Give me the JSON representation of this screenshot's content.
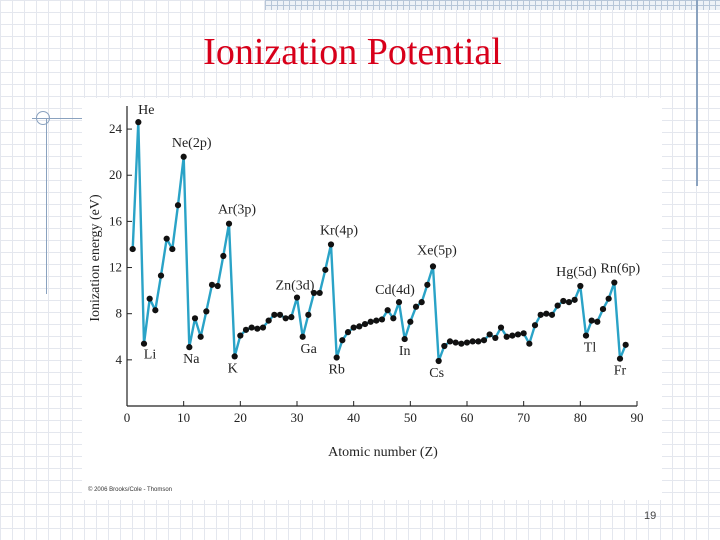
{
  "slide": {
    "title": "Ionization Potential",
    "page_number": "19",
    "copyright": "© 2006 Brooks/Cole - Thomson"
  },
  "colors": {
    "title": "#d8001a",
    "line": "#2aa3c7",
    "point": "#111111"
  },
  "chart_data": {
    "type": "line",
    "title": "",
    "xlabel": "Atomic number (Z)",
    "ylabel": "Ionization energy (eV)",
    "xlim": [
      0,
      90
    ],
    "ylim": [
      0,
      26
    ],
    "xticks": [
      0,
      10,
      20,
      30,
      40,
      50,
      60,
      70,
      80,
      90
    ],
    "yticks": [
      4,
      8,
      12,
      16,
      20,
      24
    ],
    "grid": false,
    "series": [
      {
        "x": [
          1,
          2,
          3,
          4,
          5,
          6,
          7,
          8,
          9,
          10,
          11,
          12,
          13,
          14,
          15,
          16,
          17,
          18,
          19,
          20,
          21,
          22,
          23,
          24,
          25,
          26,
          27,
          28,
          29,
          30,
          31,
          32,
          33,
          34,
          35,
          36,
          37,
          38,
          39,
          40,
          41,
          42,
          43,
          44,
          45,
          46,
          47,
          48,
          49,
          50,
          51,
          52,
          53,
          54,
          55,
          56,
          57,
          58,
          59,
          60,
          61,
          62,
          63,
          64,
          65,
          66,
          67,
          68,
          69,
          70,
          71,
          72,
          73,
          74,
          75,
          76,
          77,
          78,
          79,
          80,
          81,
          82,
          83,
          84,
          85,
          86,
          87,
          88
        ],
        "y": [
          13.6,
          24.6,
          5.4,
          9.3,
          8.3,
          11.3,
          14.5,
          13.6,
          17.4,
          21.6,
          5.1,
          7.6,
          6.0,
          8.2,
          10.5,
          10.4,
          13.0,
          15.8,
          4.3,
          6.1,
          6.6,
          6.8,
          6.7,
          6.8,
          7.4,
          7.9,
          7.9,
          7.6,
          7.7,
          9.4,
          6.0,
          7.9,
          9.8,
          9.8,
          11.8,
          14.0,
          4.2,
          5.7,
          6.4,
          6.8,
          6.9,
          7.1,
          7.3,
          7.4,
          7.5,
          8.3,
          7.6,
          9.0,
          5.8,
          7.3,
          8.6,
          9.0,
          10.5,
          12.1,
          3.9,
          5.2,
          5.6,
          5.5,
          5.4,
          5.5,
          5.6,
          5.6,
          5.7,
          6.2,
          5.9,
          6.8,
          6.0,
          6.1,
          6.2,
          6.3,
          5.4,
          7.0,
          7.9,
          8.0,
          7.9,
          8.7,
          9.1,
          9.0,
          9.2,
          10.4,
          6.1,
          7.4,
          7.3,
          8.4,
          9.3,
          10.7,
          4.1,
          5.3
        ]
      }
    ],
    "annotations": [
      {
        "text": "He",
        "x": 2,
        "y": 24.6
      },
      {
        "text": "Ne(2p)",
        "x": 10,
        "y": 21.6
      },
      {
        "text": "Ar(3p)",
        "x": 18,
        "y": 15.8
      },
      {
        "text": "Kr(4p)",
        "x": 36,
        "y": 14.0
      },
      {
        "text": "Zn(3d)",
        "x": 30,
        "y": 9.4
      },
      {
        "text": "Cd(4d)",
        "x": 48,
        "y": 9.0
      },
      {
        "text": "Xe(5p)",
        "x": 54,
        "y": 12.1
      },
      {
        "text": "Hg(5d)",
        "x": 80,
        "y": 10.4
      },
      {
        "text": "Rn(6p)",
        "x": 86,
        "y": 10.7
      },
      {
        "text": "Li",
        "x": 3,
        "y": 5.4
      },
      {
        "text": "Na",
        "x": 11,
        "y": 5.1
      },
      {
        "text": "K",
        "x": 19,
        "y": 4.3
      },
      {
        "text": "Ga",
        "x": 31,
        "y": 6.0
      },
      {
        "text": "Rb",
        "x": 37,
        "y": 4.2
      },
      {
        "text": "In",
        "x": 49,
        "y": 5.8
      },
      {
        "text": "Cs",
        "x": 55,
        "y": 3.9
      },
      {
        "text": "Tl",
        "x": 81,
        "y": 6.1
      },
      {
        "text": "Fr",
        "x": 87,
        "y": 4.1
      }
    ]
  }
}
